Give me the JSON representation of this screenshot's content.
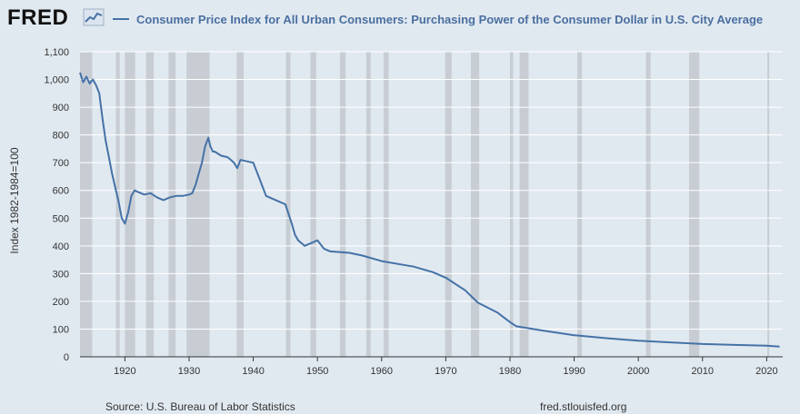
{
  "header": {
    "logo_text": "FRED",
    "logo_icon": "line-chart-icon",
    "legend_label": "Consumer Price Index for All Urban Consumers: Purchasing Power of the Consumer Dollar in U.S. City Average"
  },
  "footer": {
    "source": "Source: U.S. Bureau of Labor Statistics",
    "url": "fred.stlouisfed.org"
  },
  "colors": {
    "line": "#4572a7",
    "recession": "#c8cdd4",
    "background": "#e1e9f0",
    "grid": "#ffffff"
  },
  "chart_data": {
    "type": "line",
    "ylabel": "Index 1982-1984=100",
    "xlim": [
      1913,
      2022.5
    ],
    "ylim": [
      0,
      1100
    ],
    "x_ticks": [
      1920,
      1930,
      1940,
      1950,
      1960,
      1970,
      1980,
      1990,
      2000,
      2010,
      2020
    ],
    "y_ticks": [
      0,
      100,
      200,
      300,
      400,
      500,
      600,
      700,
      800,
      900,
      1000,
      1100
    ],
    "y_tick_labels": [
      "0",
      "100",
      "200",
      "300",
      "400",
      "500",
      "600",
      "700",
      "800",
      "900",
      "1,000",
      "1,100"
    ],
    "grid": "horizontal",
    "shaded_recessions": [
      [
        1913.0,
        1914.9
      ],
      [
        1918.6,
        1919.2
      ],
      [
        1920.0,
        1921.6
      ],
      [
        1923.3,
        1924.5
      ],
      [
        1926.8,
        1927.9
      ],
      [
        1929.6,
        1933.2
      ],
      [
        1937.4,
        1938.5
      ],
      [
        1945.1,
        1945.8
      ],
      [
        1948.9,
        1949.8
      ],
      [
        1953.5,
        1954.4
      ],
      [
        1957.6,
        1958.3
      ],
      [
        1960.3,
        1961.1
      ],
      [
        1969.9,
        1970.9
      ],
      [
        1973.9,
        1975.2
      ],
      [
        1980.0,
        1980.5
      ],
      [
        1981.5,
        1982.9
      ],
      [
        1990.5,
        1991.2
      ],
      [
        2001.2,
        2001.9
      ],
      [
        2007.9,
        2009.5
      ],
      [
        2020.1,
        2020.4
      ]
    ],
    "series": [
      {
        "x": [
          1913.0,
          1913.5,
          1914.0,
          1914.5,
          1915.0,
          1915.5,
          1916.0,
          1916.5,
          1917.0,
          1917.5,
          1918.0,
          1918.5,
          1919.0,
          1919.5,
          1920.0,
          1920.5,
          1921.0,
          1921.5,
          1922.0,
          1922.5,
          1923.0,
          1924.0,
          1925.0,
          1926.0,
          1927.0,
          1928.0,
          1929.0,
          1930.0,
          1930.5,
          1931.0,
          1932.0,
          1932.5,
          1933.0,
          1933.3,
          1933.7,
          1934.0,
          1935.0,
          1936.0,
          1937.0,
          1937.5,
          1938.0,
          1939.0,
          1940.0,
          1941.0,
          1942.0,
          1943.0,
          1944.0,
          1945.0,
          1946.0,
          1946.5,
          1947.0,
          1948.0,
          1949.0,
          1950.0,
          1951.0,
          1952.0,
          1955.0,
          1957.0,
          1960.0,
          1965.0,
          1968.0,
          1970.0,
          1973.0,
          1975.0,
          1978.0,
          1980.0,
          1981.0,
          1985.0,
          1990.0,
          1995.0,
          2000.0,
          2005.0,
          2010.0,
          2015.0,
          2020.0,
          2022.0
        ],
        "values": [
          1025,
          990,
          1010,
          985,
          1000,
          980,
          950,
          860,
          780,
          720,
          660,
          610,
          560,
          500,
          480,
          520,
          580,
          600,
          595,
          590,
          585,
          590,
          575,
          565,
          575,
          580,
          580,
          585,
          590,
          620,
          700,
          760,
          790,
          760,
          740,
          740,
          725,
          720,
          700,
          680,
          710,
          705,
          700,
          640,
          580,
          570,
          560,
          550,
          480,
          440,
          420,
          400,
          410,
          420,
          390,
          380,
          375,
          365,
          345,
          325,
          305,
          285,
          240,
          195,
          160,
          125,
          110,
          95,
          78,
          67,
          58,
          52,
          46,
          43,
          40,
          37
        ]
      }
    ]
  }
}
